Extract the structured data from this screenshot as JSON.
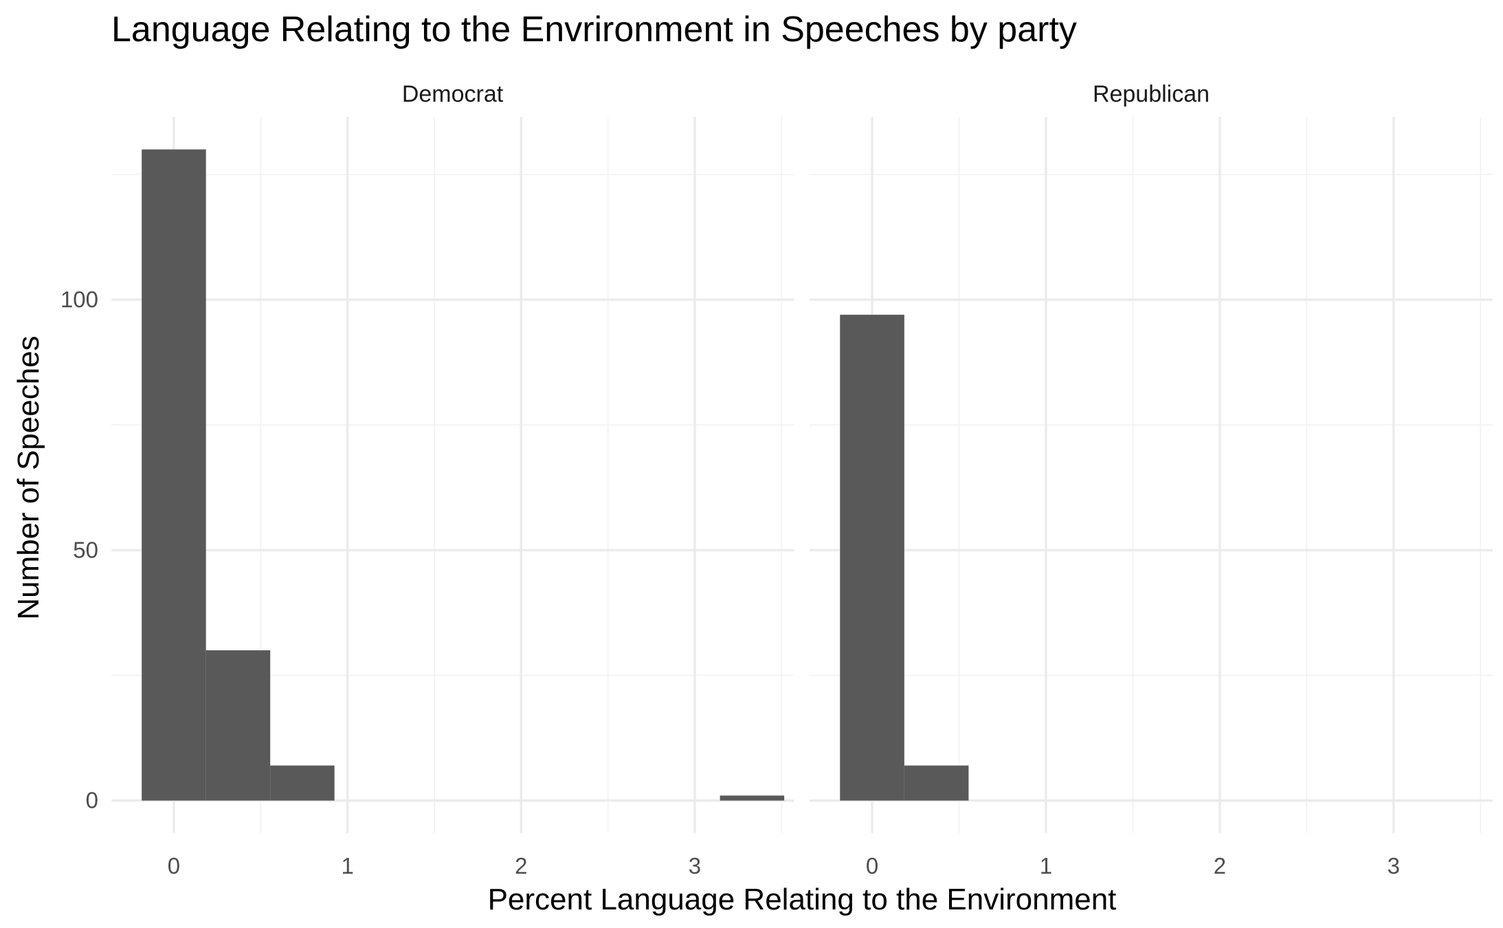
{
  "chart_data": {
    "type": "bar",
    "title": "Language Relating to the Envrironment in Speeches by party",
    "xlabel": "Percent Language Relating to the Environment",
    "ylabel": "Number of Speeches",
    "xlim": [
      -0.36,
      3.57
    ],
    "ylim": [
      -6.5,
      136.5
    ],
    "x_ticks": [
      0,
      1,
      2,
      3
    ],
    "x_tick_labels": [
      "0",
      "1",
      "2",
      "3"
    ],
    "y_ticks": [
      0,
      50,
      100
    ],
    "y_tick_labels": [
      "0",
      "50",
      "100"
    ],
    "bin_width": 0.37,
    "grid": true,
    "legend": "none",
    "panels": [
      {
        "name": "Democrat",
        "bins": [
          {
            "x0": -0.185,
            "x1": 0.185,
            "count": 130
          },
          {
            "x0": 0.185,
            "x1": 0.555,
            "count": 30
          },
          {
            "x0": 0.555,
            "x1": 0.925,
            "count": 7
          },
          {
            "x0": 3.145,
            "x1": 3.515,
            "count": 1
          }
        ]
      },
      {
        "name": "Republican",
        "bins": [
          {
            "x0": -0.185,
            "x1": 0.185,
            "count": 97
          },
          {
            "x0": 0.185,
            "x1": 0.555,
            "count": 7
          }
        ]
      }
    ],
    "colors": {
      "bar": "#595959",
      "grid_major": "#ebebeb",
      "grid_minor": "#f2f2f2"
    }
  }
}
